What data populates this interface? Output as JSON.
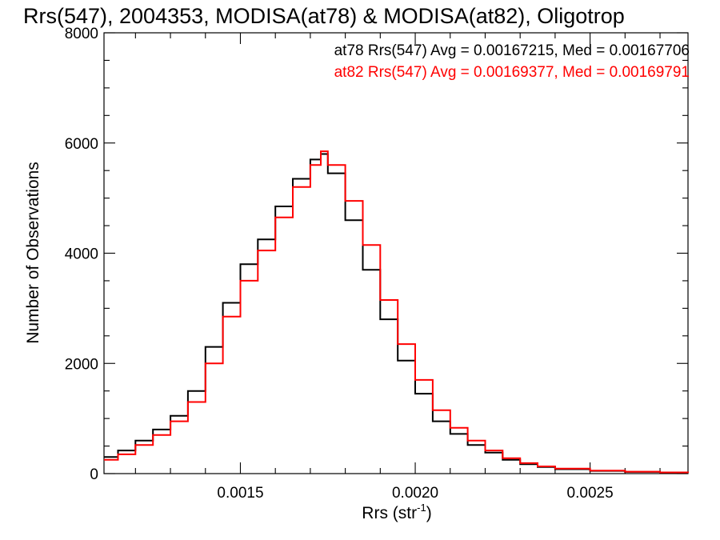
{
  "chart_data": {
    "type": "line",
    "step": true,
    "title": "Rrs(547), 2004353, MODISA(at78) & MODISA(at82), Oligotrop",
    "xlabel": "Rrs (str",
    "xlabel_sup": "-1",
    "xlabel_close": ")",
    "ylabel": "Number of Observations",
    "xlim": [
      0.00111,
      0.00278
    ],
    "ylim": [
      0,
      8000
    ],
    "x_ticks_major": [
      0.0015,
      0.002,
      0.0025
    ],
    "x_tick_labels": [
      "0.0015",
      "0.0020",
      "0.0025"
    ],
    "y_ticks_major": [
      0,
      2000,
      4000,
      6000,
      8000
    ],
    "y_tick_labels": [
      "0",
      "2000",
      "4000",
      "6000",
      "8000"
    ],
    "legend": [
      "at78 Rrs(547) Avg = 0.00167215, Med = 0.00167706",
      "at82 Rrs(547) Avg = 0.00169377, Med = 0.00169791"
    ],
    "legend_placement": "top-right",
    "series": [
      {
        "color": "#000000",
        "x": [
          0.00111,
          0.00115,
          0.0012,
          0.00125,
          0.0013,
          0.00135,
          0.0014,
          0.00145,
          0.0015,
          0.00155,
          0.0016,
          0.00165,
          0.0017,
          0.00173,
          0.00175,
          0.0018,
          0.00185,
          0.0019,
          0.00195,
          0.002,
          0.00205,
          0.0021,
          0.00215,
          0.0022,
          0.00225,
          0.0023,
          0.00235,
          0.0024,
          0.0025,
          0.0026,
          0.0027,
          0.00278
        ],
        "y": [
          300,
          420,
          600,
          800,
          1050,
          1500,
          2300,
          3100,
          3800,
          4250,
          4850,
          5350,
          5700,
          5800,
          5450,
          4600,
          3700,
          2800,
          2050,
          1450,
          950,
          720,
          520,
          380,
          250,
          170,
          120,
          80,
          50,
          30,
          20,
          15
        ]
      },
      {
        "color": "#ff0000",
        "x": [
          0.00111,
          0.00115,
          0.0012,
          0.00125,
          0.0013,
          0.00135,
          0.0014,
          0.00145,
          0.0015,
          0.00155,
          0.0016,
          0.00165,
          0.0017,
          0.00173,
          0.00175,
          0.0018,
          0.00185,
          0.0019,
          0.00195,
          0.002,
          0.00205,
          0.0021,
          0.00215,
          0.0022,
          0.00225,
          0.0023,
          0.00235,
          0.0024,
          0.0025,
          0.0026,
          0.0027,
          0.00278
        ],
        "y": [
          250,
          350,
          520,
          700,
          950,
          1300,
          2000,
          2850,
          3500,
          4050,
          4650,
          5200,
          5600,
          5850,
          5600,
          4950,
          4150,
          3150,
          2350,
          1700,
          1150,
          830,
          600,
          420,
          280,
          190,
          130,
          90,
          55,
          35,
          22,
          15
        ]
      }
    ]
  }
}
